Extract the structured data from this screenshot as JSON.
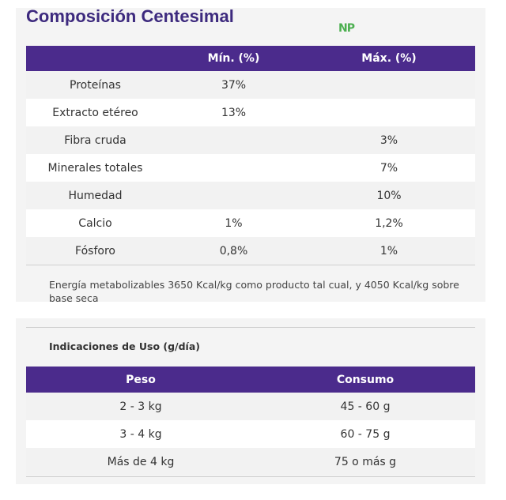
{
  "header": {
    "title": "Composición Centesimal",
    "logo": "NP"
  },
  "composition_table": {
    "columns": [
      null,
      "Mín. (%)",
      "Máx. (%)"
    ],
    "rows": [
      [
        "Proteínas",
        "37%",
        null
      ],
      [
        "Extracto etéreo",
        "13%",
        null
      ],
      [
        "Fibra cruda",
        null,
        "3%"
      ],
      [
        "Minerales totales",
        null,
        "7%"
      ],
      [
        "Humedad",
        null,
        "10%"
      ],
      [
        "Calcio",
        "1%",
        "1,2%"
      ],
      [
        "Fósforo",
        "0,8%",
        "1%"
      ]
    ],
    "note": "Energía metabolizables 3650 Kcal/kg como producto tal cual, y 4050 Kcal/kg sobre base seca"
  },
  "usage_table": {
    "title": "Indicaciones de Uso (g/día)",
    "columns": [
      "Peso",
      "Consumo"
    ],
    "rows": [
      [
        "2 - 3 kg",
        "45 - 60 g"
      ],
      [
        "3 - 4 kg",
        "60 - 75 g"
      ],
      [
        "Más de 4 kg",
        "75 o más g"
      ]
    ]
  }
}
